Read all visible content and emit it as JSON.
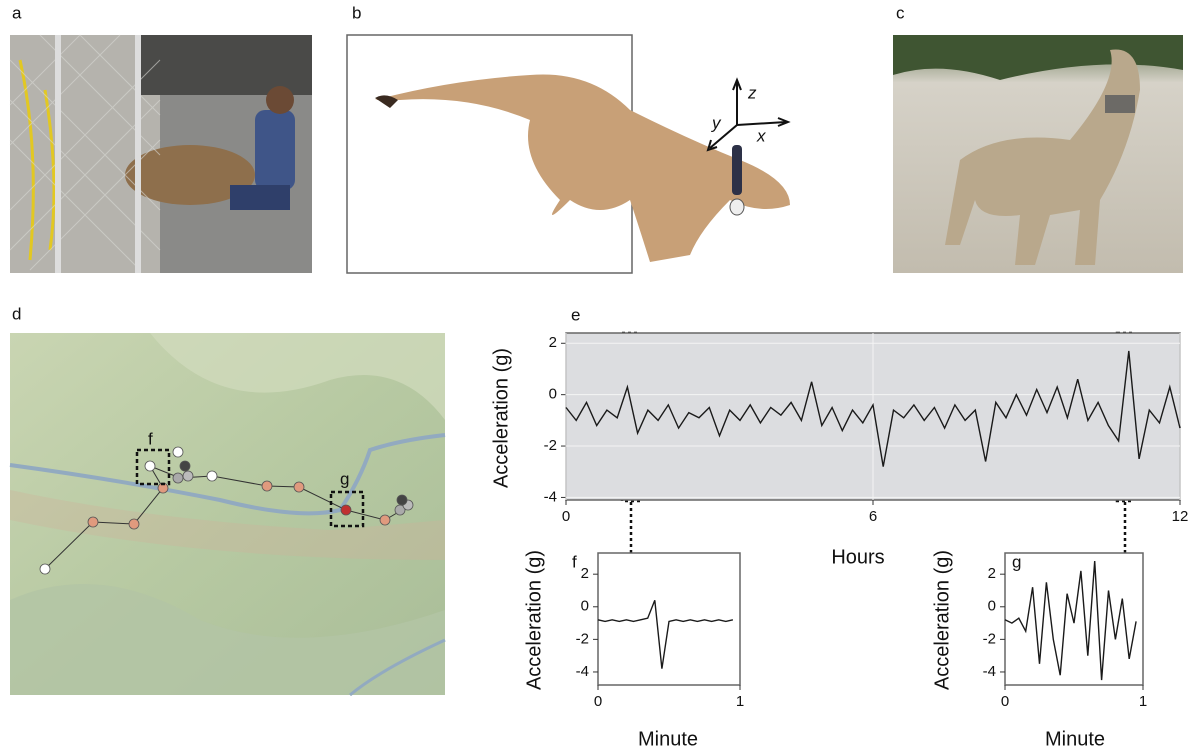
{
  "panels": {
    "a": "a",
    "b": "b",
    "c": "c",
    "d": "d"
  },
  "axes3d": {
    "z": "z",
    "y": "y",
    "x": "x"
  },
  "map_markers": {
    "f": "f",
    "g": "g"
  },
  "chart_data": [
    {
      "type": "line",
      "label": "e",
      "xlabel": "Hours",
      "ylabel": "Acceleration (g)",
      "color": "#1a1a1a",
      "grid": true,
      "xlim": [
        0,
        12
      ],
      "ylim": [
        -4.1,
        2.4
      ],
      "xticks": [
        0,
        6,
        12
      ],
      "yticks": [
        -4,
        -2,
        0,
        2
      ],
      "x": [
        0,
        0.2,
        0.4,
        0.6,
        0.8,
        1,
        1.2,
        1.4,
        1.6,
        1.8,
        2,
        2.2,
        2.4,
        2.6,
        2.8,
        3,
        3.2,
        3.4,
        3.6,
        3.8,
        4,
        4.2,
        4.4,
        4.6,
        4.8,
        5,
        5.2,
        5.4,
        5.6,
        5.8,
        6,
        6.2,
        6.4,
        6.6,
        6.8,
        7,
        7.2,
        7.4,
        7.6,
        7.8,
        8,
        8.2,
        8.4,
        8.6,
        8.8,
        9,
        9.2,
        9.4,
        9.6,
        9.8,
        10,
        10.2,
        10.4,
        10.6,
        10.8,
        11,
        11.2,
        11.4,
        11.6,
        11.8,
        12
      ],
      "values": [
        -0.5,
        -1.0,
        -0.3,
        -1.2,
        -0.6,
        -0.9,
        0.3,
        -1.5,
        -0.6,
        -1.0,
        -0.4,
        -1.3,
        -0.7,
        -0.9,
        -0.5,
        -1.6,
        -0.6,
        -1.0,
        -0.4,
        -1.1,
        -0.5,
        -0.8,
        -0.3,
        -1.0,
        0.5,
        -1.2,
        -0.5,
        -1.4,
        -0.6,
        -1.1,
        -0.4,
        -2.8,
        -0.6,
        -0.9,
        -0.4,
        -1.0,
        -0.5,
        -1.3,
        -0.4,
        -1.0,
        -0.6,
        -2.6,
        -0.3,
        -0.9,
        0.0,
        -0.8,
        0.2,
        -0.7,
        0.3,
        -0.9,
        0.6,
        -1.0,
        -0.3,
        -1.2,
        -1.8,
        1.7,
        -2.5,
        -0.6,
        -1.1,
        0.3,
        -1.3
      ]
    },
    {
      "type": "line",
      "label": "f",
      "xlabel": "Minute",
      "ylabel": "Acceleration (g)",
      "color": "#1a1a1a",
      "grid": false,
      "xlim": [
        0,
        1
      ],
      "ylim": [
        -4.8,
        3.3
      ],
      "xticks": [
        0,
        1
      ],
      "yticks": [
        -4,
        -2,
        0,
        2
      ],
      "x": [
        0,
        0.05,
        0.1,
        0.15,
        0.2,
        0.25,
        0.3,
        0.35,
        0.4,
        0.45,
        0.5,
        0.55,
        0.6,
        0.65,
        0.7,
        0.75,
        0.8,
        0.85,
        0.9,
        0.95
      ],
      "values": [
        -0.8,
        -0.9,
        -0.8,
        -0.9,
        -0.8,
        -0.9,
        -0.8,
        -0.7,
        0.4,
        -3.8,
        -0.9,
        -0.8,
        -0.9,
        -0.8,
        -0.9,
        -0.8,
        -0.9,
        -0.8,
        -0.9,
        -0.8
      ]
    },
    {
      "type": "line",
      "label": "g",
      "xlabel": "Minute",
      "ylabel": "Acceleration (g)",
      "color": "#1a1a1a",
      "grid": false,
      "xlim": [
        0,
        1
      ],
      "ylim": [
        -4.8,
        3.3
      ],
      "xticks": [
        0,
        1
      ],
      "yticks": [
        -4,
        -2,
        0,
        2
      ],
      "x": [
        0,
        0.05,
        0.1,
        0.15,
        0.2,
        0.25,
        0.3,
        0.35,
        0.4,
        0.45,
        0.5,
        0.55,
        0.6,
        0.65,
        0.7,
        0.75,
        0.8,
        0.85,
        0.9,
        0.95
      ],
      "values": [
        -0.8,
        -1.0,
        -0.7,
        -1.5,
        1.2,
        -3.5,
        1.5,
        -2.0,
        -4.2,
        0.8,
        -1.0,
        2.2,
        -3.0,
        2.8,
        -4.5,
        1.0,
        -2.0,
        0.5,
        -3.2,
        -0.9
      ]
    }
  ]
}
